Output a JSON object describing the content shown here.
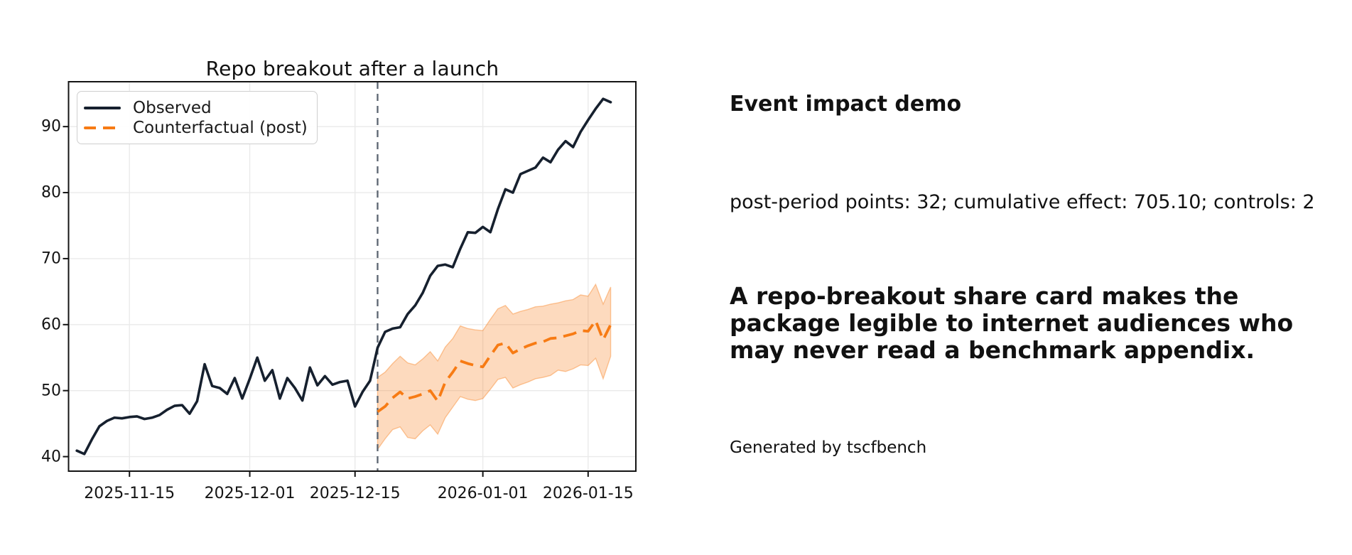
{
  "page": {
    "background": "#ffffff"
  },
  "right_panel": {
    "heading": "Event impact demo",
    "stats_line": "post-period points: 32; cumulative effect: 705.10; controls: 2",
    "stats": {
      "post_period_points": 32,
      "cumulative_effect": "705.10",
      "controls": 2
    },
    "blurb_lines": [
      "A repo-breakout share card makes the",
      "package legible to internet audiences who",
      "may never read a benchmark appendix."
    ],
    "blurb_full": "A repo-breakout share card makes the package legible to internet audiences who may never read a benchmark appendix.",
    "footer": "Generated by tscfbench"
  },
  "chart_data": {
    "type": "line",
    "title": "Repo breakout after a launch",
    "x_frequency": "daily",
    "x_start_date": "2025-11-08",
    "x_end_date": "2026-01-18",
    "x_dates": [
      "2025-11-08",
      "2025-11-09",
      "2025-11-10",
      "2025-11-11",
      "2025-11-12",
      "2025-11-13",
      "2025-11-14",
      "2025-11-15",
      "2025-11-16",
      "2025-11-17",
      "2025-11-18",
      "2025-11-19",
      "2025-11-20",
      "2025-11-21",
      "2025-11-22",
      "2025-11-23",
      "2025-11-24",
      "2025-11-25",
      "2025-11-26",
      "2025-11-27",
      "2025-11-28",
      "2025-11-29",
      "2025-11-30",
      "2025-12-01",
      "2025-12-02",
      "2025-12-03",
      "2025-12-04",
      "2025-12-05",
      "2025-12-06",
      "2025-12-07",
      "2025-12-08",
      "2025-12-09",
      "2025-12-10",
      "2025-12-11",
      "2025-12-12",
      "2025-12-13",
      "2025-12-14",
      "2025-12-15",
      "2025-12-16",
      "2025-12-17",
      "2025-12-18",
      "2025-12-19",
      "2025-12-20",
      "2025-12-21",
      "2025-12-22",
      "2025-12-23",
      "2025-12-24",
      "2025-12-25",
      "2025-12-26",
      "2025-12-27",
      "2025-12-28",
      "2025-12-29",
      "2025-12-30",
      "2025-12-31",
      "2026-01-01",
      "2026-01-02",
      "2026-01-03",
      "2026-01-04",
      "2026-01-05",
      "2026-01-06",
      "2026-01-07",
      "2026-01-08",
      "2026-01-09",
      "2026-01-10",
      "2026-01-11",
      "2026-01-12",
      "2026-01-13",
      "2026-01-14",
      "2026-01-15",
      "2026-01-16",
      "2026-01-17",
      "2026-01-18"
    ],
    "series": [
      {
        "name": "Observed",
        "color": "#16202e",
        "line_style": "solid",
        "start_index": 0,
        "values": [
          40.9,
          40.4,
          42.6,
          44.6,
          45.4,
          45.9,
          45.8,
          46.0,
          46.1,
          45.7,
          45.9,
          46.3,
          47.1,
          47.7,
          47.8,
          46.5,
          48.4,
          54.0,
          50.7,
          50.4,
          49.5,
          51.9,
          48.8,
          51.8,
          55.0,
          51.5,
          53.1,
          48.8,
          51.9,
          50.4,
          48.5,
          53.5,
          50.8,
          52.2,
          50.9,
          51.3,
          51.5,
          47.6,
          49.8,
          51.5,
          56.5,
          58.9,
          59.4,
          59.6,
          61.6,
          62.9,
          64.8,
          67.4,
          68.9,
          69.1,
          68.7,
          71.5,
          74.0,
          73.9,
          74.8,
          74.0,
          77.5,
          80.5,
          80.0,
          82.8,
          83.3,
          83.8,
          85.3,
          84.6,
          86.5,
          87.8,
          86.9,
          89.2,
          91.0,
          92.7,
          94.2,
          93.7
        ]
      },
      {
        "name": "Counterfactual (post)",
        "color": "#f77b14",
        "line_style": "dashed",
        "start_index": 40,
        "values": [
          46.8,
          47.6,
          48.9,
          49.8,
          48.8,
          49.1,
          49.5,
          50.0,
          48.4,
          51.3,
          52.8,
          54.5,
          54.1,
          53.8,
          53.6,
          55.3,
          56.9,
          57.2,
          55.7,
          56.3,
          56.8,
          57.2,
          57.4,
          57.9,
          58.0,
          58.3,
          58.6,
          59.1,
          59.0,
          60.6,
          57.7,
          60.0
        ],
        "band": {
          "fill_color": "#f77b14",
          "fill_opacity": 0.28,
          "upper": [
            52.0,
            52.8,
            54.1,
            55.2,
            54.2,
            53.9,
            54.8,
            55.9,
            54.5,
            56.6,
            57.9,
            59.8,
            59.4,
            59.2,
            59.1,
            60.8,
            62.4,
            62.9,
            61.6,
            62.0,
            62.3,
            62.7,
            62.8,
            63.1,
            63.3,
            63.6,
            63.8,
            64.5,
            64.3,
            66.1,
            63.1,
            65.7
          ],
          "lower": [
            41.1,
            42.7,
            44.1,
            44.5,
            42.9,
            42.7,
            43.9,
            44.8,
            43.4,
            45.9,
            47.5,
            49.1,
            48.7,
            48.5,
            48.8,
            50.2,
            51.7,
            52.0,
            50.4,
            50.9,
            51.3,
            51.8,
            52.0,
            52.3,
            53.1,
            52.9,
            53.3,
            53.9,
            53.8,
            54.9,
            51.8,
            55.2
          ]
        }
      }
    ],
    "event_line": {
      "index": 40,
      "date": "2025-12-18",
      "color": "#5b6470",
      "style": "dashed"
    },
    "yticks": [
      40,
      50,
      60,
      70,
      80,
      90
    ],
    "xticks": [
      {
        "index": 7,
        "label": "2025-11-15"
      },
      {
        "index": 23,
        "label": "2025-12-01"
      },
      {
        "index": 37,
        "label": "2025-12-15"
      },
      {
        "index": 54,
        "label": "2026-01-01"
      },
      {
        "index": 68,
        "label": "2026-01-15"
      }
    ],
    "ylim": [
      37.8,
      96.8
    ],
    "xlim": [
      -1.1,
      74.35
    ],
    "grid": true,
    "legend_position": "upper left",
    "legend": [
      {
        "label": "Observed"
      },
      {
        "label": "Counterfactual (post)"
      }
    ],
    "colors": {
      "grid": "#eaeaea",
      "spine": "#141414",
      "background": "#ffffff"
    }
  }
}
